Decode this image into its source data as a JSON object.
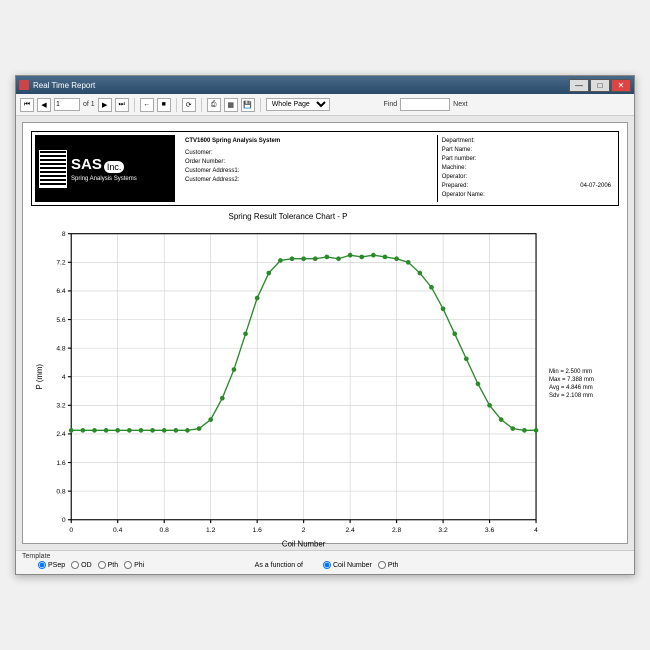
{
  "window": {
    "title": "Real Time Report"
  },
  "toolbar": {
    "page_current": "1",
    "page_of": "of 1",
    "zoom": "Whole Page",
    "find_label": "Find",
    "next_label": "Next"
  },
  "header": {
    "system_title": "CTV1600 Spring Analysis System",
    "col1": [
      "Customer:",
      "Order Number:",
      "Customer Address1:",
      "Customer Address2:"
    ],
    "col2_labels": [
      "Department:",
      "Part Name:",
      "Part number:",
      "Machine:",
      "Operator:",
      "Prepared:",
      "Operator Name:"
    ],
    "col2_date": "04-07-2006"
  },
  "logo": {
    "main": "SAS",
    "inc": "Inc.",
    "sub": "Spring Analysis Systems"
  },
  "chart": {
    "title": "Spring Result Tolerance Chart - P",
    "ylabel": "P (mm)",
    "xlabel": "Coil Number",
    "type": "line",
    "xlim": [
      0,
      4
    ],
    "ylim": [
      0,
      8
    ],
    "xtick_step": 0.4,
    "ytick_step": 0.8,
    "xticks": [
      "0",
      "0.4",
      "0.8",
      "1.2",
      "1.6",
      "2",
      "2.4",
      "2.8",
      "3.2",
      "3.6",
      "4"
    ],
    "yticks": [
      "0",
      "0.8",
      "1.6",
      "2.4",
      "3.2",
      "4",
      "4.8",
      "5.6",
      "6.4",
      "7.2",
      "8"
    ],
    "x_values": [
      0,
      0.1,
      0.2,
      0.3,
      0.4,
      0.5,
      0.6,
      0.7,
      0.8,
      0.9,
      1.0,
      1.1,
      1.2,
      1.3,
      1.4,
      1.5,
      1.6,
      1.7,
      1.8,
      1.9,
      2.0,
      2.1,
      2.2,
      2.3,
      2.4,
      2.5,
      2.6,
      2.7,
      2.8,
      2.9,
      3.0,
      3.1,
      3.2,
      3.3,
      3.4,
      3.5,
      3.6,
      3.7,
      3.8,
      3.9,
      4.0
    ],
    "y_values": [
      2.5,
      2.5,
      2.5,
      2.5,
      2.5,
      2.5,
      2.5,
      2.5,
      2.5,
      2.5,
      2.5,
      2.55,
      2.8,
      3.4,
      4.2,
      5.2,
      6.2,
      6.9,
      7.25,
      7.3,
      7.3,
      7.3,
      7.35,
      7.3,
      7.4,
      7.35,
      7.4,
      7.35,
      7.3,
      7.2,
      6.9,
      6.5,
      5.9,
      5.2,
      4.5,
      3.8,
      3.2,
      2.8,
      2.55,
      2.5,
      2.5
    ],
    "line_color": "#2a8a2a",
    "marker_color": "#2a8a2a",
    "marker_size": 3,
    "line_width": 1.2,
    "grid_color": "#cccccc",
    "axis_color": "#000000",
    "background_color": "#ffffff",
    "tick_fontsize": 6,
    "label_fontsize": 7,
    "title_fontsize": 8
  },
  "stats": {
    "min": "Min = 2.500 mm",
    "max": "Max = 7.388 mm",
    "avg": "Avg = 4.846 mm",
    "sdv": "Sdv = 2.108 mm"
  },
  "bottom": {
    "section_label": "Template",
    "opts1": [
      "PSep",
      "OD",
      "Pth",
      "Phi"
    ],
    "selected1": "PSep",
    "mid_label": "As a function of",
    "opts2": [
      "Coil Number",
      "Pth"
    ],
    "selected2": "Coil Number"
  }
}
